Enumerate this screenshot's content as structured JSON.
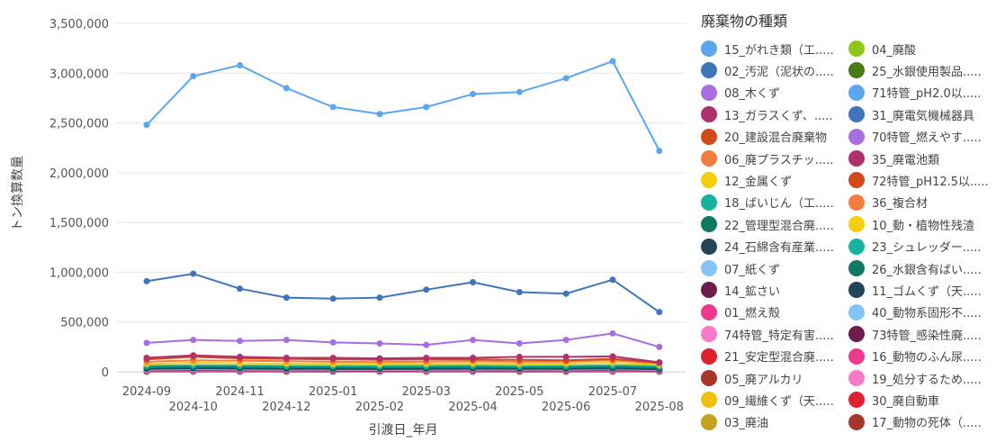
{
  "chart_data": {
    "type": "line",
    "xlabel": "引渡日_年月",
    "ylabel": "トン換算数量",
    "ylim": [
      0,
      3500000
    ],
    "yticks": [
      "0",
      "500,000",
      "1,000,000",
      "1,500,000",
      "2,000,000",
      "2,500,000",
      "3,000,000",
      "3,500,000"
    ],
    "grid": true,
    "legend_title": "廃棄物の種類",
    "legend_position": "right",
    "categories": [
      "2024-09",
      "2024-10",
      "2024-11",
      "2024-12",
      "2025-01",
      "2025-02",
      "2025-03",
      "2025-04",
      "2025-05",
      "2025-06",
      "2025-07",
      "2025-08"
    ],
    "series": [
      {
        "name": "15_がれき類（工.....",
        "color": "#5aa7f0",
        "values": [
          2480000,
          2970000,
          3080000,
          2850000,
          2660000,
          2590000,
          2660000,
          2790000,
          2810000,
          2950000,
          3120000,
          2220000
        ]
      },
      {
        "name": "02_汚泥（泥状の.....",
        "color": "#3f76bb",
        "values": [
          910000,
          985000,
          835000,
          745000,
          735000,
          745000,
          825000,
          900000,
          800000,
          785000,
          925000,
          600000
        ]
      },
      {
        "name": "08_木くず",
        "color": "#a96ee0",
        "values": [
          290000,
          320000,
          310000,
          320000,
          295000,
          285000,
          270000,
          320000,
          285000,
          320000,
          385000,
          250000
        ]
      },
      {
        "name": "13_ガラスくず、.....",
        "color": "#b0306e",
        "values": [
          140000,
          165000,
          150000,
          140000,
          140000,
          135000,
          140000,
          140000,
          150000,
          150000,
          155000,
          95000
        ]
      },
      {
        "name": "20_建設混合廃棄物",
        "color": "#d14a1a",
        "values": [
          125000,
          150000,
          135000,
          130000,
          125000,
          120000,
          125000,
          125000,
          120000,
          115000,
          130000,
          90000
        ]
      },
      {
        "name": "06_廃プラスチッ.....",
        "color": "#f47c3c",
        "values": [
          100000,
          115000,
          110000,
          108000,
          100000,
          98000,
          102000,
          108000,
          100000,
          102000,
          115000,
          85000
        ]
      },
      {
        "name": "12_金属くず",
        "color": "#f5cf0a",
        "values": [
          80000,
          90000,
          85000,
          82000,
          78000,
          76000,
          80000,
          85000,
          80000,
          82000,
          90000,
          70000
        ]
      },
      {
        "name": "18_ばいじん（工.....",
        "color": "#17b39c",
        "values": [
          60000,
          65000,
          62000,
          60000,
          58000,
          57000,
          60000,
          62000,
          58000,
          60000,
          65000,
          55000
        ]
      },
      {
        "name": "22_管理型混合廃.....",
        "color": "#0e7a64",
        "values": [
          45000,
          50000,
          48000,
          46000,
          44000,
          43000,
          45000,
          47000,
          44000,
          45000,
          50000,
          40000
        ]
      },
      {
        "name": "24_石綿含有産業.....",
        "color": "#234459",
        "values": [
          30000,
          35000,
          32000,
          30000,
          29000,
          28000,
          30000,
          32000,
          29000,
          30000,
          34000,
          26000
        ]
      },
      {
        "name": "07_紙くず",
        "color": "#84c3f5",
        "values": [
          20000,
          24000,
          22000,
          21000,
          20000,
          19000,
          20000,
          22000,
          20000,
          21000,
          24000,
          18000
        ]
      },
      {
        "name": "14_鉱さい",
        "color": "#6e1d4e",
        "values": [
          15000,
          18000,
          16000,
          15000,
          14000,
          14000,
          15000,
          16000,
          14000,
          15000,
          18000,
          13000
        ]
      },
      {
        "name": "01_燃え殻",
        "color": "#ee3a8c",
        "values": [
          10000,
          12000,
          11000,
          10000,
          10000,
          9000,
          10000,
          11000,
          10000,
          10000,
          12000,
          9000
        ]
      },
      {
        "name": "74特管_特定有害.....",
        "color": "#f77ac8",
        "values": [
          6000,
          7000,
          6500,
          6000,
          6000,
          5500,
          6000,
          6500,
          6000,
          6000,
          7000,
          5000
        ]
      },
      {
        "name": "21_安定型混合廃.....",
        "color": "#e0202e",
        "values": [
          5000,
          20000,
          6000,
          5000,
          5000,
          5000,
          5000,
          6000,
          5000,
          5000,
          6000,
          5000
        ]
      },
      {
        "name": "05_廃アルカリ",
        "color": "#a8352a",
        "values": [
          4000,
          5000,
          4500,
          4000,
          4000,
          3800,
          4000,
          4500,
          4000,
          4000,
          5000,
          3500
        ]
      },
      {
        "name": "09_繊維くず（天.....",
        "color": "#f0c00c",
        "values": [
          3000,
          3500,
          3200,
          3000,
          3000,
          2800,
          3000,
          3200,
          3000,
          3000,
          3500,
          2600
        ]
      },
      {
        "name": "03_廃油",
        "color": "#c4a21a",
        "values": [
          2500,
          3000,
          2800,
          2600,
          2500,
          2400,
          2500,
          2800,
          2500,
          2600,
          3000,
          2200
        ]
      },
      {
        "name": "04_廃酸",
        "color": "#8ec61a",
        "values": [
          2000,
          2400,
          2200,
          2000,
          2000,
          1900,
          2000,
          2200,
          2000,
          2000,
          2400,
          1800
        ]
      },
      {
        "name": "25_水銀使用製品.....",
        "color": "#4a7a16",
        "values": [
          1500,
          1800,
          1600,
          1500,
          1500,
          1400,
          1500,
          1600,
          1500,
          1500,
          1800,
          1300
        ]
      },
      {
        "name": "71特管_pH2.0以.....",
        "color": "#5aa7f0",
        "values": [
          1200,
          1400,
          1300,
          1200,
          1200,
          1100,
          1200,
          1300,
          1200,
          1200,
          1400,
          1000
        ]
      },
      {
        "name": "31_廃電気機械器具",
        "color": "#3f76bb",
        "values": [
          1000,
          1200,
          1100,
          1000,
          1000,
          950,
          1000,
          1100,
          1000,
          1000,
          1200,
          900
        ]
      },
      {
        "name": "70特管_燃えやす.....",
        "color": "#a96ee0",
        "values": [
          800,
          900,
          850,
          800,
          800,
          750,
          800,
          850,
          800,
          800,
          900,
          700
        ]
      },
      {
        "name": "35_廃電池類",
        "color": "#b0306e",
        "values": [
          600,
          700,
          650,
          600,
          600,
          580,
          600,
          650,
          600,
          600,
          700,
          550
        ]
      },
      {
        "name": "72特管_pH12.5以.....",
        "color": "#d14a1a",
        "values": [
          500,
          600,
          550,
          500,
          500,
          480,
          500,
          550,
          500,
          500,
          600,
          450
        ]
      },
      {
        "name": "36_複合材",
        "color": "#f47c3c",
        "values": [
          400,
          500,
          450,
          400,
          400,
          380,
          400,
          450,
          400,
          400,
          500,
          350
        ]
      },
      {
        "name": "10_動・植物性残渣",
        "color": "#f5cf0a",
        "values": [
          300,
          400,
          350,
          300,
          300,
          290,
          300,
          350,
          300,
          300,
          400,
          280
        ]
      },
      {
        "name": "23_シュレッダー.....",
        "color": "#17b39c",
        "values": [
          250,
          300,
          280,
          250,
          250,
          240,
          250,
          280,
          250,
          250,
          300,
          230
        ]
      },
      {
        "name": "26_水銀含有ばい.....",
        "color": "#0e7a64",
        "values": [
          200,
          250,
          220,
          200,
          200,
          190,
          200,
          220,
          200,
          200,
          250,
          180
        ]
      },
      {
        "name": "11_ゴムくず（天.....",
        "color": "#234459",
        "values": [
          150,
          200,
          180,
          150,
          150,
          140,
          150,
          180,
          150,
          150,
          200,
          130
        ]
      },
      {
        "name": "40_動物系固形不.....",
        "color": "#84c3f5",
        "values": [
          100,
          150,
          120,
          100,
          100,
          90,
          100,
          120,
          100,
          100,
          150,
          80
        ]
      },
      {
        "name": "73特管_感染性廃.....",
        "color": "#6e1d4e",
        "values": [
          80,
          100,
          90,
          80,
          80,
          70,
          80,
          90,
          80,
          80,
          100,
          60
        ]
      },
      {
        "name": "16_動物のふん尿.....",
        "color": "#ee3a8c",
        "values": [
          60,
          80,
          70,
          60,
          60,
          50,
          60,
          70,
          60,
          60,
          80,
          50
        ]
      },
      {
        "name": "19_処分するため.....",
        "color": "#f77ac8",
        "values": [
          40,
          60,
          50,
          40,
          40,
          35,
          40,
          50,
          40,
          40,
          60,
          30
        ]
      },
      {
        "name": "30_廃自動車",
        "color": "#e0202e",
        "values": [
          30,
          40,
          35,
          30,
          30,
          25,
          30,
          35,
          30,
          30,
          40,
          20
        ]
      },
      {
        "name": "17_動物の死体（.....",
        "color": "#a8352a",
        "values": [
          20,
          30,
          25,
          20,
          20,
          15,
          20,
          25,
          20,
          20,
          30,
          10
        ]
      }
    ]
  }
}
